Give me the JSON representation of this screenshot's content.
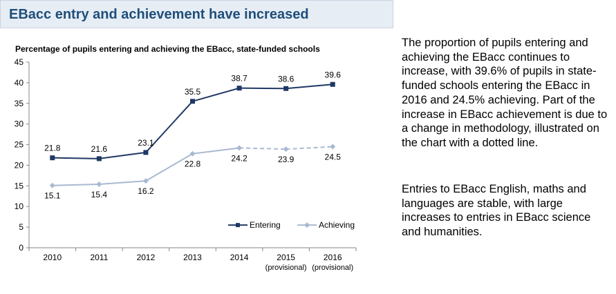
{
  "header": {
    "title": "EBacc entry and achievement have increased"
  },
  "text": {
    "paragraph_1": "The proportion of pupils entering and achieving the EBacc continues to increase, with 39.6% of pupils in state-funded schools entering the EBacc in 2016 and 24.5% achieving. Part of the increase in EBacc achievement is due to a change in methodology, illustrated on the chart with a dotted line.",
    "paragraph_2": "Entries to EBacc English, maths and languages are stable, with large increases to entries in EBacc science and humanities."
  },
  "chart_data": {
    "type": "line",
    "title": "Percentage of pupils entering and achieving the EBacc, state-funded schools",
    "categories": [
      "2010",
      "2011",
      "2012",
      "2013",
      "2014",
      "2015",
      "2016"
    ],
    "category_sublabels": [
      "",
      "",
      "",
      "",
      "",
      "(provisional)",
      "(provisional)"
    ],
    "ylim": [
      0,
      45
    ],
    "yticks": [
      0,
      5,
      10,
      15,
      20,
      25,
      30,
      35,
      40,
      45
    ],
    "grid": false,
    "legend_position": "bottom-right",
    "series": [
      {
        "name": "Entering",
        "values": [
          21.8,
          21.6,
          23.1,
          35.5,
          38.7,
          38.6,
          39.6
        ],
        "labels": [
          "21.8",
          "21.6",
          "23.1",
          "35.5",
          "38.7",
          "38.6",
          "39.6"
        ],
        "color": "#1f3864",
        "marker": "square"
      },
      {
        "name": "Achieving",
        "values": [
          15.1,
          15.4,
          16.2,
          22.8,
          24.2,
          23.9,
          24.5
        ],
        "labels": [
          "15.1",
          "15.4",
          "16.2",
          "22.8",
          "24.2",
          "23.9",
          "24.5"
        ],
        "color": "#a9b9d2",
        "marker": "diamond",
        "dashed_from_index": 5
      }
    ]
  }
}
